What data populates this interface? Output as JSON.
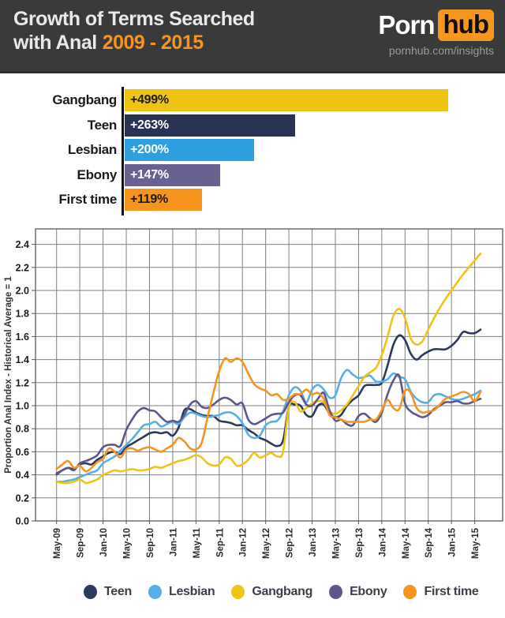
{
  "header": {
    "title_line1": "Growth of Terms Searched",
    "title_line2": "with Anal",
    "title_years": "2009 - 2015",
    "brand": {
      "part1": "Porn",
      "part2": "hub",
      "tagline": "pornhub.com/insights"
    },
    "colors": {
      "background": "#3A3A3A",
      "accent_orange": "#F7941D",
      "hub_badge": "#F7971D",
      "title_text": "#E9E9E9"
    }
  },
  "chart_data": [
    {
      "type": "bar",
      "orientation": "horizontal",
      "title": "",
      "categories": [
        "Gangbang",
        "Teen",
        "Lesbian",
        "Ebony",
        "First time"
      ],
      "values": [
        499,
        263,
        200,
        147,
        119
      ],
      "value_labels": [
        "+499%",
        "+263%",
        "+200%",
        "+147%",
        "+119%"
      ],
      "bar_colors": [
        "#EFC311",
        "#283253",
        "#2E9FE0",
        "#696190",
        "#F7941E"
      ],
      "value_label_colors": [
        "#1A1A1A",
        "#FFFFFF",
        "#FFFFFF",
        "#FFFFFF",
        "#1A1A1A"
      ],
      "xlim": [
        0,
        508
      ]
    },
    {
      "type": "line",
      "title": "",
      "xlabel": "",
      "ylabel": "Proportion Anal Index - Historical Average = 1",
      "ylim": [
        0.0,
        2.53
      ],
      "ytick_labels": [
        "0.0",
        "0.2",
        "0.4",
        "0.6",
        "0.8",
        "1.0",
        "1.2",
        "1.4",
        "1.6",
        "1.8",
        "2.0",
        "2.2",
        "2.4"
      ],
      "xtick_labels": [
        "May-09",
        "Sep-09",
        "Jan-10",
        "May-10",
        "Sep-10",
        "Jan-11",
        "May-11",
        "Sep-11",
        "Jan-12",
        "May-12",
        "Sep-12",
        "Jan-13",
        "May-13",
        "Sep-13",
        "Jan-14",
        "May-14",
        "Sep-14",
        "Jan-15",
        "May-15"
      ],
      "months_per_tick": 4,
      "grid": true,
      "grid_color": "#7F7F7F",
      "legend_position": "bottom",
      "series": [
        {
          "name": "Teen",
          "color": "#2B3A5C",
          "values": [
            0.41,
            0.44,
            0.46,
            0.45,
            0.49,
            0.5,
            0.49,
            0.53,
            0.56,
            0.59,
            0.6,
            0.58,
            0.64,
            0.67,
            0.7,
            0.73,
            0.76,
            0.77,
            0.76,
            0.77,
            0.74,
            0.81,
            0.96,
            0.97,
            0.94,
            0.92,
            0.91,
            0.91,
            0.87,
            0.86,
            0.85,
            0.83,
            0.83,
            0.79,
            0.76,
            0.72,
            0.7,
            0.67,
            0.65,
            0.7,
            0.99,
            1.01,
            1.0,
            0.92,
            0.91,
            1.0,
            1.01,
            0.93,
            0.9,
            0.92,
            1.0,
            1.05,
            1.09,
            1.17,
            1.18,
            1.18,
            1.2,
            1.35,
            1.53,
            1.61,
            1.57,
            1.45,
            1.4,
            1.44,
            1.47,
            1.49,
            1.49,
            1.49,
            1.52,
            1.57,
            1.64,
            1.63,
            1.63,
            1.66
          ]
        },
        {
          "name": "Lesbian",
          "color": "#56AFE6",
          "values": [
            0.34,
            0.34,
            0.35,
            0.36,
            0.38,
            0.4,
            0.42,
            0.44,
            0.5,
            0.53,
            0.56,
            0.61,
            0.66,
            0.71,
            0.77,
            0.83,
            0.84,
            0.86,
            0.82,
            0.84,
            0.86,
            0.84,
            0.9,
            0.94,
            0.93,
            0.91,
            0.9,
            0.91,
            0.92,
            0.94,
            0.94,
            0.91,
            0.85,
            0.75,
            0.72,
            0.74,
            0.83,
            0.86,
            0.87,
            0.95,
            1.09,
            1.16,
            1.13,
            1.03,
            1.14,
            1.18,
            1.14,
            1.07,
            1.09,
            1.24,
            1.31,
            1.27,
            1.24,
            1.25,
            1.26,
            1.21,
            1.21,
            1.23,
            1.28,
            1.25,
            1.23,
            1.12,
            1.06,
            1.03,
            1.03,
            1.09,
            1.1,
            1.08,
            1.06,
            1.05,
            1.06,
            1.08,
            1.1,
            1.13
          ]
        },
        {
          "name": "Gangbang",
          "color": "#F0C317",
          "values": [
            0.34,
            0.33,
            0.33,
            0.34,
            0.36,
            0.33,
            0.34,
            0.36,
            0.4,
            0.42,
            0.44,
            0.43,
            0.44,
            0.45,
            0.44,
            0.44,
            0.45,
            0.47,
            0.46,
            0.48,
            0.5,
            0.52,
            0.53,
            0.55,
            0.57,
            0.55,
            0.5,
            0.48,
            0.49,
            0.55,
            0.54,
            0.48,
            0.49,
            0.53,
            0.59,
            0.55,
            0.57,
            0.59,
            0.56,
            0.6,
            0.99,
            1.03,
            0.95,
            0.98,
            1.02,
            1.04,
            1.03,
            0.95,
            0.93,
            0.96,
            1.01,
            1.09,
            1.17,
            1.25,
            1.29,
            1.33,
            1.44,
            1.6,
            1.78,
            1.84,
            1.76,
            1.58,
            1.53,
            1.56,
            1.66,
            1.76,
            1.85,
            1.93,
            2.0,
            2.07,
            2.14,
            2.2,
            2.26,
            2.32
          ]
        },
        {
          "name": "Ebony",
          "color": "#5D568C",
          "values": [
            0.4,
            0.44,
            0.46,
            0.44,
            0.5,
            0.52,
            0.54,
            0.57,
            0.64,
            0.66,
            0.66,
            0.65,
            0.79,
            0.88,
            0.95,
            0.98,
            0.96,
            0.95,
            0.9,
            0.86,
            0.87,
            0.86,
            0.92,
            1.01,
            1.04,
            0.99,
            0.98,
            1.01,
            1.05,
            1.07,
            1.05,
            1.01,
            1.02,
            0.88,
            0.84,
            0.86,
            0.89,
            0.92,
            0.93,
            0.94,
            1.03,
            1.09,
            1.09,
            1.01,
            1.0,
            1.06,
            1.11,
            0.96,
            0.87,
            0.88,
            0.84,
            0.83,
            0.91,
            0.93,
            0.89,
            0.86,
            0.94,
            1.1,
            1.22,
            1.26,
            1.02,
            0.95,
            0.92,
            0.9,
            0.92,
            0.97,
            1.0,
            1.03,
            1.03,
            1.04,
            1.02,
            1.02,
            1.04,
            1.06
          ]
        },
        {
          "name": "First time",
          "color": "#F7941E",
          "values": [
            0.45,
            0.49,
            0.52,
            0.46,
            0.48,
            0.43,
            0.46,
            0.51,
            0.54,
            0.63,
            0.6,
            0.55,
            0.62,
            0.63,
            0.61,
            0.63,
            0.64,
            0.62,
            0.6,
            0.63,
            0.66,
            0.72,
            0.69,
            0.63,
            0.62,
            0.68,
            0.9,
            1.11,
            1.3,
            1.41,
            1.38,
            1.41,
            1.38,
            1.28,
            1.19,
            1.15,
            1.13,
            1.09,
            1.1,
            1.05,
            1.06,
            1.1,
            1.1,
            1.14,
            1.1,
            1.11,
            1.06,
            0.92,
            0.9,
            0.88,
            0.86,
            0.86,
            0.86,
            0.86,
            0.88,
            0.88,
            0.96,
            1.05,
            0.98,
            0.97,
            1.13,
            1.11,
            0.98,
            0.94,
            0.95,
            0.96,
            1.01,
            1.06,
            1.08,
            1.1,
            1.12,
            1.1,
            1.04,
            1.12
          ]
        }
      ]
    }
  ]
}
